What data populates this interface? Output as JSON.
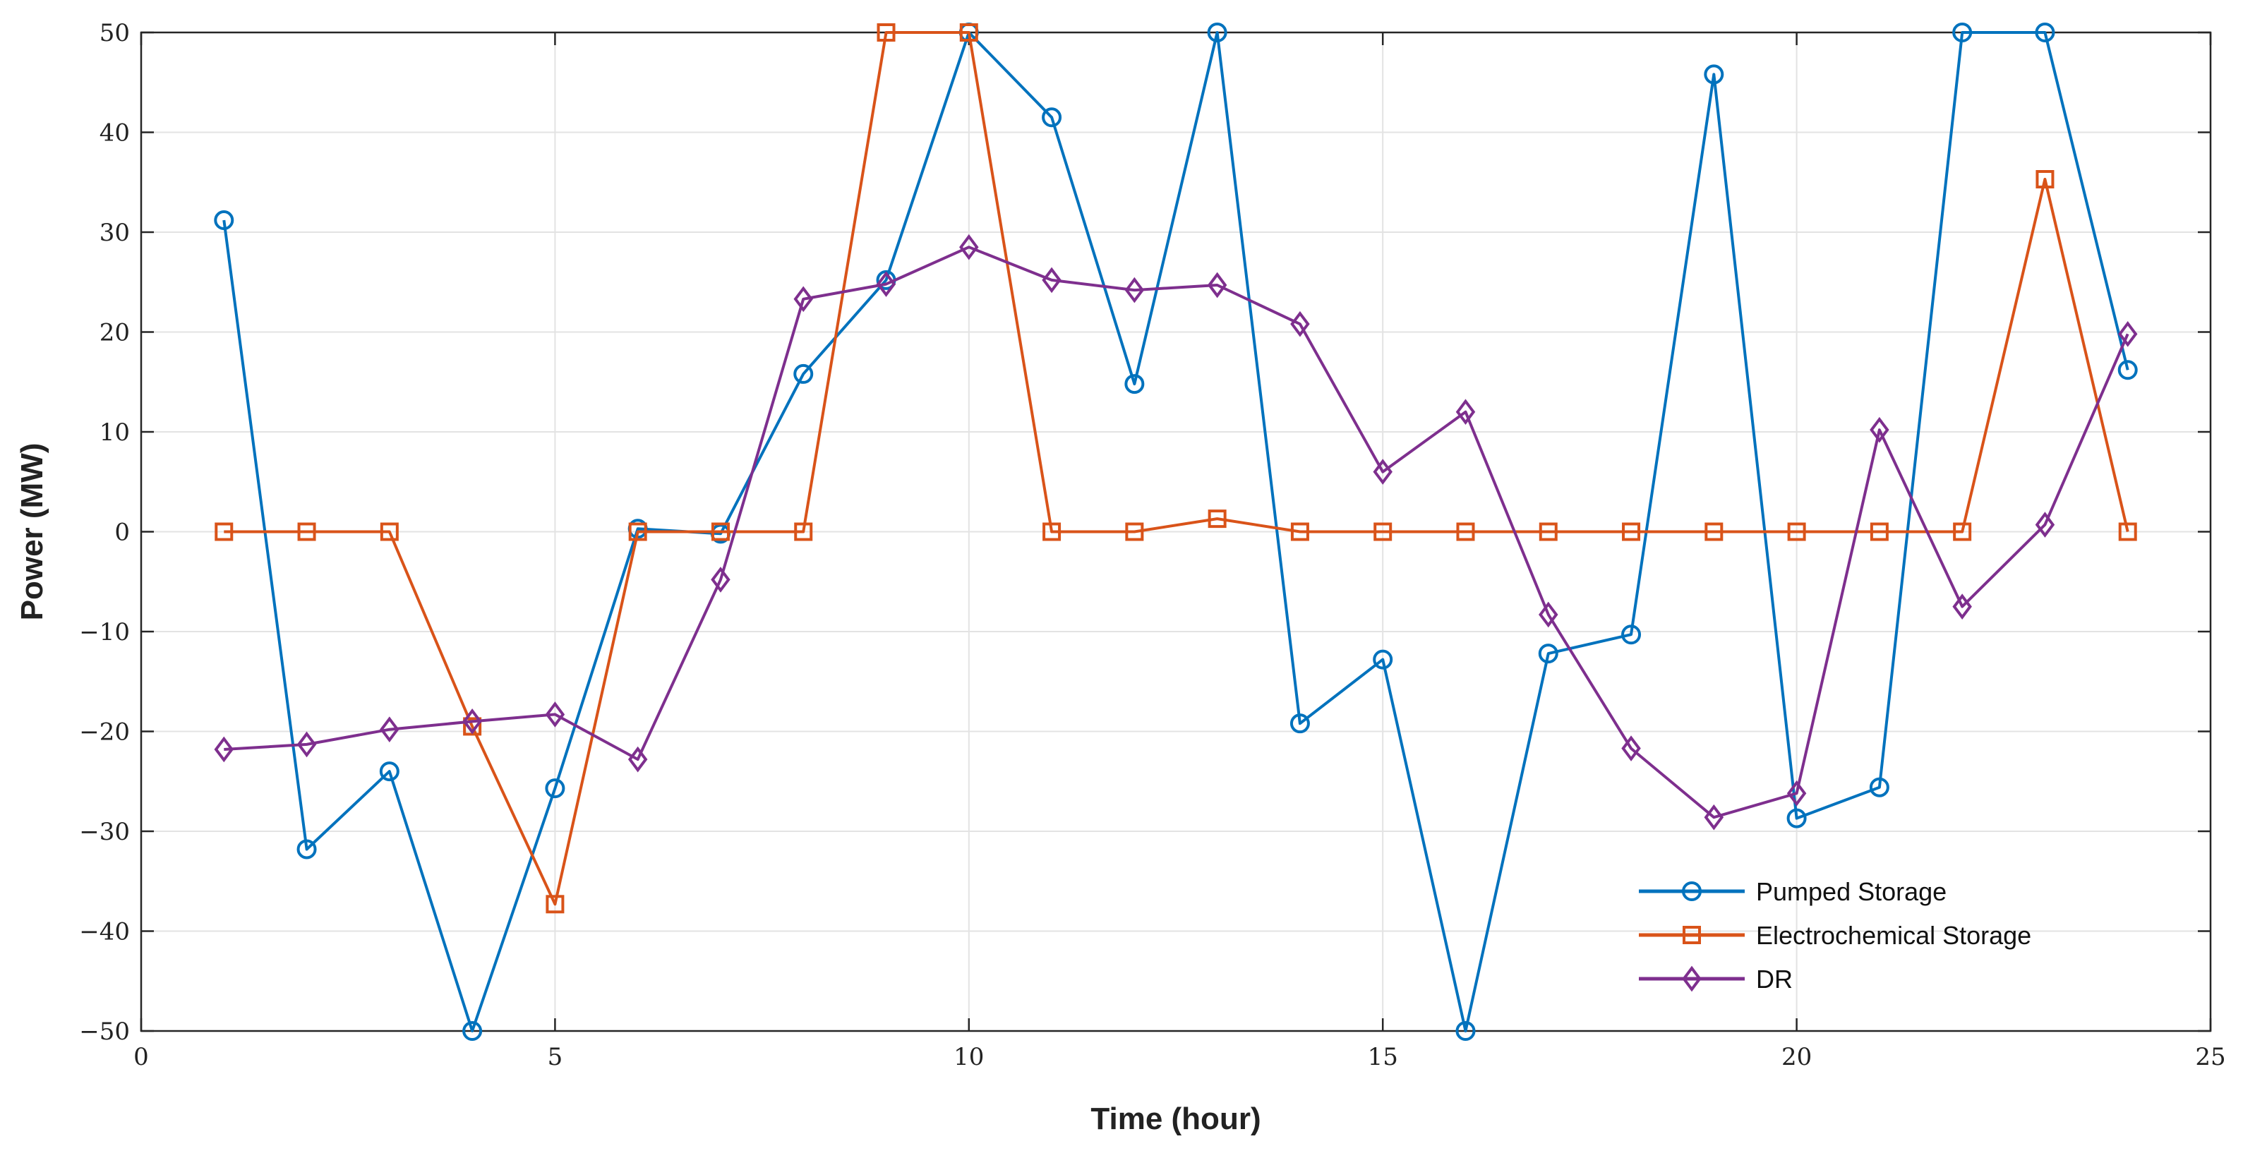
{
  "chart_data": {
    "type": "line",
    "xlabel": "Time (hour)",
    "ylabel": "Power (MW)",
    "xlim": [
      0,
      25
    ],
    "ylim": [
      -50,
      50
    ],
    "xticks": [
      0,
      5,
      10,
      15,
      20,
      25
    ],
    "yticks": [
      -50,
      -40,
      -30,
      -20,
      -10,
      0,
      10,
      20,
      30,
      40,
      50
    ],
    "grid": true,
    "legend_position": "bottom-right",
    "x": [
      1,
      2,
      3,
      4,
      5,
      6,
      7,
      8,
      9,
      10,
      11,
      12,
      13,
      14,
      15,
      16,
      17,
      18,
      19,
      20,
      21,
      22,
      23,
      24
    ],
    "series": [
      {
        "name": "Pumped Storage",
        "color": "#0072BD",
        "marker": "circle",
        "values": [
          31.2,
          -31.8,
          -24,
          -50,
          -25.7,
          0.3,
          -0.2,
          15.8,
          25.2,
          50,
          41.5,
          14.8,
          50,
          -19.2,
          -12.8,
          -50,
          -12.2,
          -10.3,
          45.8,
          -28.7,
          -25.6,
          50,
          50,
          16.2
        ]
      },
      {
        "name": "Electrochemical Storage",
        "color": "#D95319",
        "marker": "square",
        "values": [
          0,
          0,
          0,
          -19.5,
          -37.3,
          0,
          0,
          0,
          50,
          50,
          0,
          0,
          1.3,
          0,
          0,
          0,
          0,
          0,
          0,
          0,
          0,
          0,
          35.3,
          0
        ]
      },
      {
        "name": "DR",
        "color": "#7E2F8E",
        "marker": "diamond",
        "values": [
          -21.8,
          -21.3,
          -19.8,
          -19,
          -18.3,
          -22.8,
          -4.8,
          23.3,
          24.8,
          28.5,
          25.2,
          24.2,
          24.7,
          20.8,
          6,
          12,
          -8.3,
          -21.7,
          -28.6,
          -26.2,
          10.2,
          -7.5,
          0.7,
          19.8
        ]
      }
    ]
  }
}
